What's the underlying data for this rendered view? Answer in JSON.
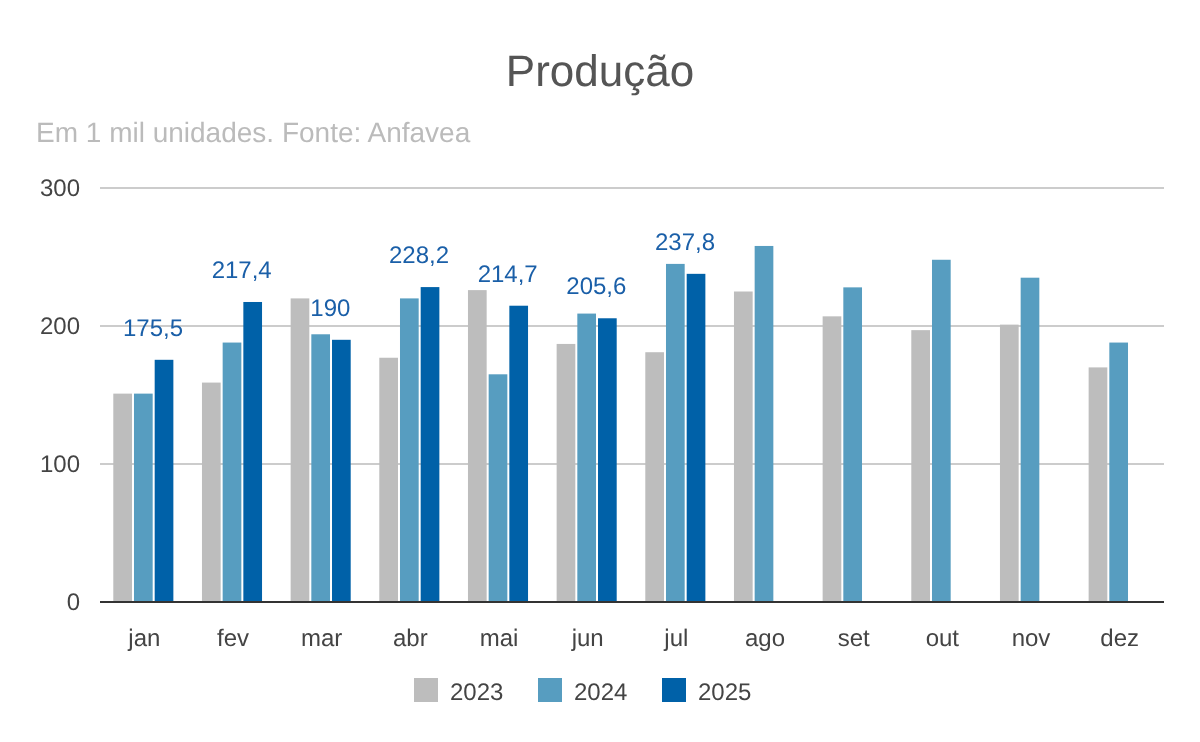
{
  "chart_data": {
    "type": "bar",
    "title": "Produção",
    "subtitle": "Em 1 mil unidades. Fonte: Anfavea",
    "categories": [
      "jan",
      "fev",
      "mar",
      "abr",
      "mai",
      "jun",
      "jul",
      "ago",
      "set",
      "out",
      "nov",
      "dez"
    ],
    "series": [
      {
        "name": "2023",
        "color": "#bdbdbd",
        "values": [
          151,
          159,
          220,
          177,
          226,
          187,
          181,
          225,
          207,
          197,
          201,
          170
        ]
      },
      {
        "name": "2024",
        "color": "#579dc0",
        "values": [
          151,
          188,
          194,
          220,
          165,
          209,
          245,
          258,
          228,
          248,
          235,
          188
        ]
      },
      {
        "name": "2025",
        "color": "#0061a8",
        "values": [
          175.5,
          217.4,
          190,
          228.2,
          214.7,
          205.6,
          237.8,
          null,
          null,
          null,
          null,
          null
        ],
        "value_labels": [
          "175,5",
          "217,4",
          "190",
          "228,2",
          "214,7",
          "205,6",
          "237,8",
          null,
          null,
          null,
          null,
          null
        ]
      }
    ],
    "ylim": [
      0,
      300
    ],
    "yticks": [
      0,
      100,
      200,
      300
    ],
    "grid": "y",
    "legend": "bottom"
  }
}
